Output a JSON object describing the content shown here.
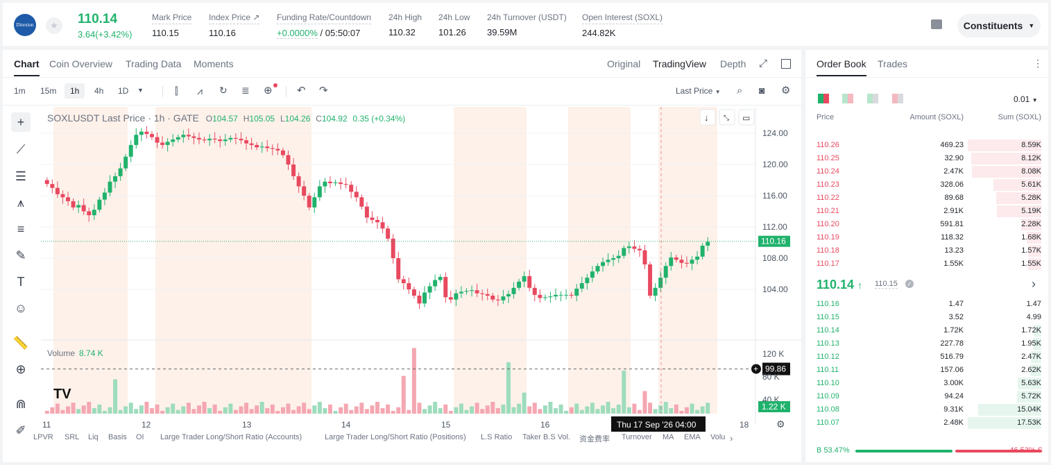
{
  "header": {
    "logo_text": "Direxion",
    "price": "110.14",
    "change": "3.64(+3.42%)",
    "stats": [
      {
        "label": "Mark Price",
        "value": "110.15"
      },
      {
        "label": "Index Price ↗",
        "value": "110.16"
      },
      {
        "label": "Funding Rate/Countdown",
        "value": "+0.0000%",
        "value2": "/ 05:50:07"
      },
      {
        "label": "24h High",
        "value": "110.32"
      },
      {
        "label": "24h Low",
        "value": "101.26"
      },
      {
        "label": "24h Turnover (USDT)",
        "value": "39.59M"
      },
      {
        "label": "Open Interest (SOXL)",
        "value": "244.82K"
      }
    ],
    "constituents_label": "Constituents"
  },
  "chart_tabs": [
    "Chart",
    "Coin Overview",
    "Trading Data",
    "Moments"
  ],
  "view_tabs": [
    "Original",
    "TradingView",
    "Depth"
  ],
  "timeframes": [
    "1m",
    "15m",
    "1h",
    "4h",
    "1D"
  ],
  "price_type": "Last Price",
  "legend": {
    "symbol": "SOXLUSDT Last Price · 1h · GATE",
    "o": "104.57",
    "h": "105.05",
    "l": "104.26",
    "c": "104.92",
    "chg": "0.35 (+0.34%)"
  },
  "volume_legend": {
    "label": "Volume",
    "value": "8.74 K"
  },
  "price_axis": [
    "124.00",
    "120.00",
    "116.00",
    "112.00",
    "108.00",
    "104.00"
  ],
  "price_tag": "110.16",
  "cross_price": "99.86",
  "vol_axis": [
    "120 K",
    "80 K",
    "40 K"
  ],
  "vol_tag": "1.22 K",
  "time_axis": [
    "11",
    "12",
    "13",
    "14",
    "15",
    "16",
    "17",
    "18"
  ],
  "crosshair_time": "Thu 17 Sep '26   04:00",
  "bottom_tabs": [
    "LPVR",
    "SRL",
    "Liq",
    "Basis",
    "OI",
    "Large Trader Long/Short Ratio (Accounts)",
    "Large Trader Long/Short Ratio (Positions)",
    "L.S Ratio",
    "Taker B.S Vol.",
    "资金费率",
    "Turnover",
    "MA",
    "EMA",
    "Volu"
  ],
  "orderbook": {
    "tabs": [
      "Order Book",
      "Trades"
    ],
    "precision": "0.01",
    "headers": [
      "Price",
      "Amount (SOXL)",
      "Sum (SOXL)"
    ],
    "asks": [
      {
        "p": "110.26",
        "a": "469.23",
        "s": "8.59K",
        "w": 1.0
      },
      {
        "p": "110.25",
        "a": "32.90",
        "s": "8.12K",
        "w": 0.95
      },
      {
        "p": "110.24",
        "a": "2.47K",
        "s": "8.08K",
        "w": 0.94
      },
      {
        "p": "110.23",
        "a": "328.06",
        "s": "5.61K",
        "w": 0.65
      },
      {
        "p": "110.22",
        "a": "89.68",
        "s": "5.28K",
        "w": 0.61
      },
      {
        "p": "110.21",
        "a": "2.91K",
        "s": "5.19K",
        "w": 0.6
      },
      {
        "p": "110.20",
        "a": "591.81",
        "s": "2.28K",
        "w": 0.27
      },
      {
        "p": "110.19",
        "a": "118.32",
        "s": "1.68K",
        "w": 0.2
      },
      {
        "p": "110.18",
        "a": "13.23",
        "s": "1.57K",
        "w": 0.18
      },
      {
        "p": "110.17",
        "a": "1.55K",
        "s": "1.55K",
        "w": 0.18
      }
    ],
    "last": "110.14",
    "mark": "110.15",
    "bids": [
      {
        "p": "110.16",
        "a": "1.47",
        "s": "1.47",
        "w": 0.0
      },
      {
        "p": "110.15",
        "a": "3.52",
        "s": "4.99",
        "w": 0.0
      },
      {
        "p": "110.14",
        "a": "1.72K",
        "s": "1.72K",
        "w": 0.1
      },
      {
        "p": "110.13",
        "a": "227.78",
        "s": "1.95K",
        "w": 0.11
      },
      {
        "p": "110.12",
        "a": "516.79",
        "s": "2.47K",
        "w": 0.14
      },
      {
        "p": "110.11",
        "a": "157.06",
        "s": "2.62K",
        "w": 0.15
      },
      {
        "p": "110.10",
        "a": "3.00K",
        "s": "5.63K",
        "w": 0.32
      },
      {
        "p": "110.09",
        "a": "94.24",
        "s": "5.72K",
        "w": 0.33
      },
      {
        "p": "110.08",
        "a": "9.31K",
        "s": "15.04K",
        "w": 0.86
      },
      {
        "p": "110.07",
        "a": "2.48K",
        "s": "17.53K",
        "w": 1.0
      }
    ],
    "buy_ratio": "B 53.47%",
    "sell_ratio": "46.53% S",
    "buy_fraction": 0.5347
  },
  "colors": {
    "up": "#20b26c",
    "down": "#e8495f",
    "session": "#fdf1ea"
  }
}
